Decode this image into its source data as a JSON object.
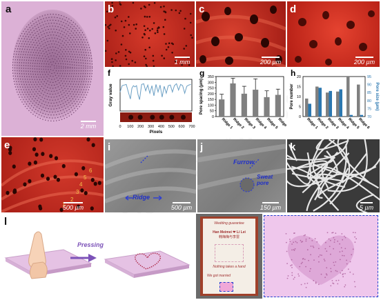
{
  "panels": {
    "a": {
      "label": "a",
      "scale": "2 mm"
    },
    "b": {
      "label": "b",
      "scale": "1 mm"
    },
    "c": {
      "label": "c",
      "scale": "200 µm"
    },
    "d": {
      "label": "d",
      "scale": "200 µm"
    },
    "e": {
      "label": "e",
      "scale": "500 µm",
      "ridge_numbers": [
        "1",
        "2",
        "3",
        "4",
        "5",
        "6"
      ]
    },
    "f": {
      "label": "f"
    },
    "g": {
      "label": "g"
    },
    "h": {
      "label": "h"
    },
    "i": {
      "label": "i",
      "scale": "500 µm",
      "annotation": "Ridge"
    },
    "j": {
      "label": "j",
      "scale": "150 µm",
      "annotation_furrow": "Furrow",
      "annotation_pore": "Sweat pore"
    },
    "k": {
      "label": "k",
      "scale": "5 µm"
    },
    "l": {
      "label": "l",
      "arrow_text": "Pressing",
      "certificate": {
        "header": "Wedding guarantee",
        "names": "Han Meimei ❤ Li Lei",
        "chinese": "韩梅梅与李雷",
        "line1": "Nothing takes a hand",
        "line2": "We got married"
      }
    }
  },
  "colors": {
    "fluor_bg": "#c0281e",
    "pink_bg": "#e3b2dc",
    "bar_gray": "#808080",
    "bar_blue": "#2b77b0",
    "line_blue": "#6a9fc4"
  },
  "chart_data": [
    {
      "type": "line",
      "panel": "f",
      "xlabel": "Pixels",
      "ylabel": "Gray value",
      "xticks": [
        "0",
        "100",
        "200",
        "300",
        "400",
        "500",
        "600",
        "700"
      ],
      "xlim": [
        0,
        700
      ],
      "ylim": [
        0,
        250
      ],
      "series": [
        {
          "x": [
            0,
            20,
            40,
            60,
            80,
            100,
            115,
            130,
            145,
            160,
            175,
            190,
            210,
            230,
            250,
            270,
            290,
            310,
            330,
            350,
            370,
            390,
            410,
            430,
            450,
            470,
            490,
            510,
            530,
            550,
            570,
            590,
            610,
            630,
            650,
            670,
            690
          ],
          "values": [
            150,
            200,
            205,
            210,
            150,
            95,
            180,
            200,
            190,
            200,
            130,
            90,
            210,
            215,
            160,
            205,
            140,
            200,
            120,
            210,
            150,
            205,
            110,
            195,
            140,
            200,
            205,
            150,
            200,
            215,
            165,
            210,
            200,
            140,
            195,
            205,
            210
          ]
        }
      ]
    },
    {
      "type": "bar",
      "panel": "g",
      "ylabel": "Pore spacing (μm)",
      "yticks": [
        "0",
        "50",
        "100",
        "150",
        "200",
        "250",
        "300",
        "350"
      ],
      "ylim": [
        0,
        350
      ],
      "categories": [
        "Ridge 1",
        "Ridge 2",
        "Ridge 3",
        "Ridge 4",
        "Ridge 5",
        "Ridge 6"
      ],
      "values": [
        150,
        290,
        200,
        235,
        170,
        190
      ],
      "errors": [
        45,
        45,
        65,
        95,
        55,
        50
      ]
    },
    {
      "type": "bar",
      "panel": "h",
      "ylabel": "Pore number",
      "ylabel_right": "Pore size (μm)",
      "yticks": [
        "0",
        "5",
        "10",
        "15",
        "20"
      ],
      "yticks_right": [
        "70",
        "75",
        "80",
        "85",
        "90",
        "95"
      ],
      "ylim": [
        0,
        20
      ],
      "ylim_right": [
        70,
        95
      ],
      "categories": [
        "Ridge 1",
        "Ridge 2",
        "Ridge 3",
        "Ridge 4",
        "Ridge 5",
        "Ridge 6"
      ],
      "series": [
        {
          "values": [
            9,
            15,
            12,
            12.5,
            20,
            16
          ]
        },
        {
          "values": [
            78,
            88,
            86,
            87,
            71,
            71
          ]
        }
      ]
    }
  ]
}
